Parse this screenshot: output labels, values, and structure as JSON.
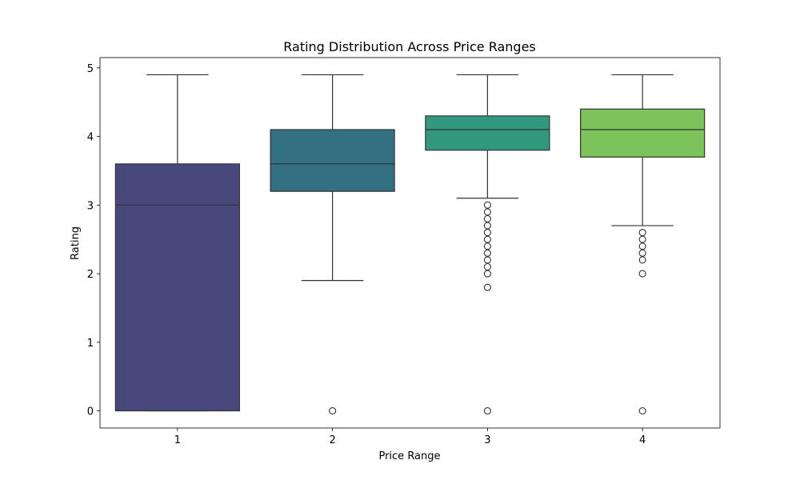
{
  "chart_data": {
    "type": "box",
    "title": "Rating Distribution Across Price Ranges",
    "xlabel": "Price Range",
    "ylabel": "Rating",
    "categories": [
      "1",
      "2",
      "3",
      "4"
    ],
    "ylim": [
      -0.25,
      5.15
    ],
    "yticks": [
      0,
      1,
      2,
      3,
      4,
      5
    ],
    "grid": false,
    "boxes": [
      {
        "category": "1",
        "color": "#48487d",
        "q1": 0.0,
        "median": 3.0,
        "q3": 3.6,
        "whisker_low": 0.0,
        "whisker_high": 4.9,
        "fliers": []
      },
      {
        "category": "2",
        "color": "#327082",
        "q1": 3.2,
        "median": 3.6,
        "q3": 4.1,
        "whisker_low": 1.9,
        "whisker_high": 4.9,
        "fliers": [
          0.0
        ]
      },
      {
        "category": "3",
        "color": "#33997e",
        "q1": 3.8,
        "median": 4.1,
        "q3": 4.3,
        "whisker_low": 3.1,
        "whisker_high": 4.9,
        "fliers": [
          3.0,
          2.9,
          2.8,
          2.7,
          2.6,
          2.5,
          2.4,
          2.3,
          2.2,
          2.1,
          2.0,
          1.8,
          0.0
        ]
      },
      {
        "category": "4",
        "color": "#7dc35c",
        "q1": 3.7,
        "median": 4.1,
        "q3": 4.4,
        "whisker_low": 2.7,
        "whisker_high": 4.9,
        "fliers": [
          2.6,
          2.5,
          2.4,
          2.3,
          2.2,
          2.0,
          0.0
        ]
      }
    ]
  }
}
